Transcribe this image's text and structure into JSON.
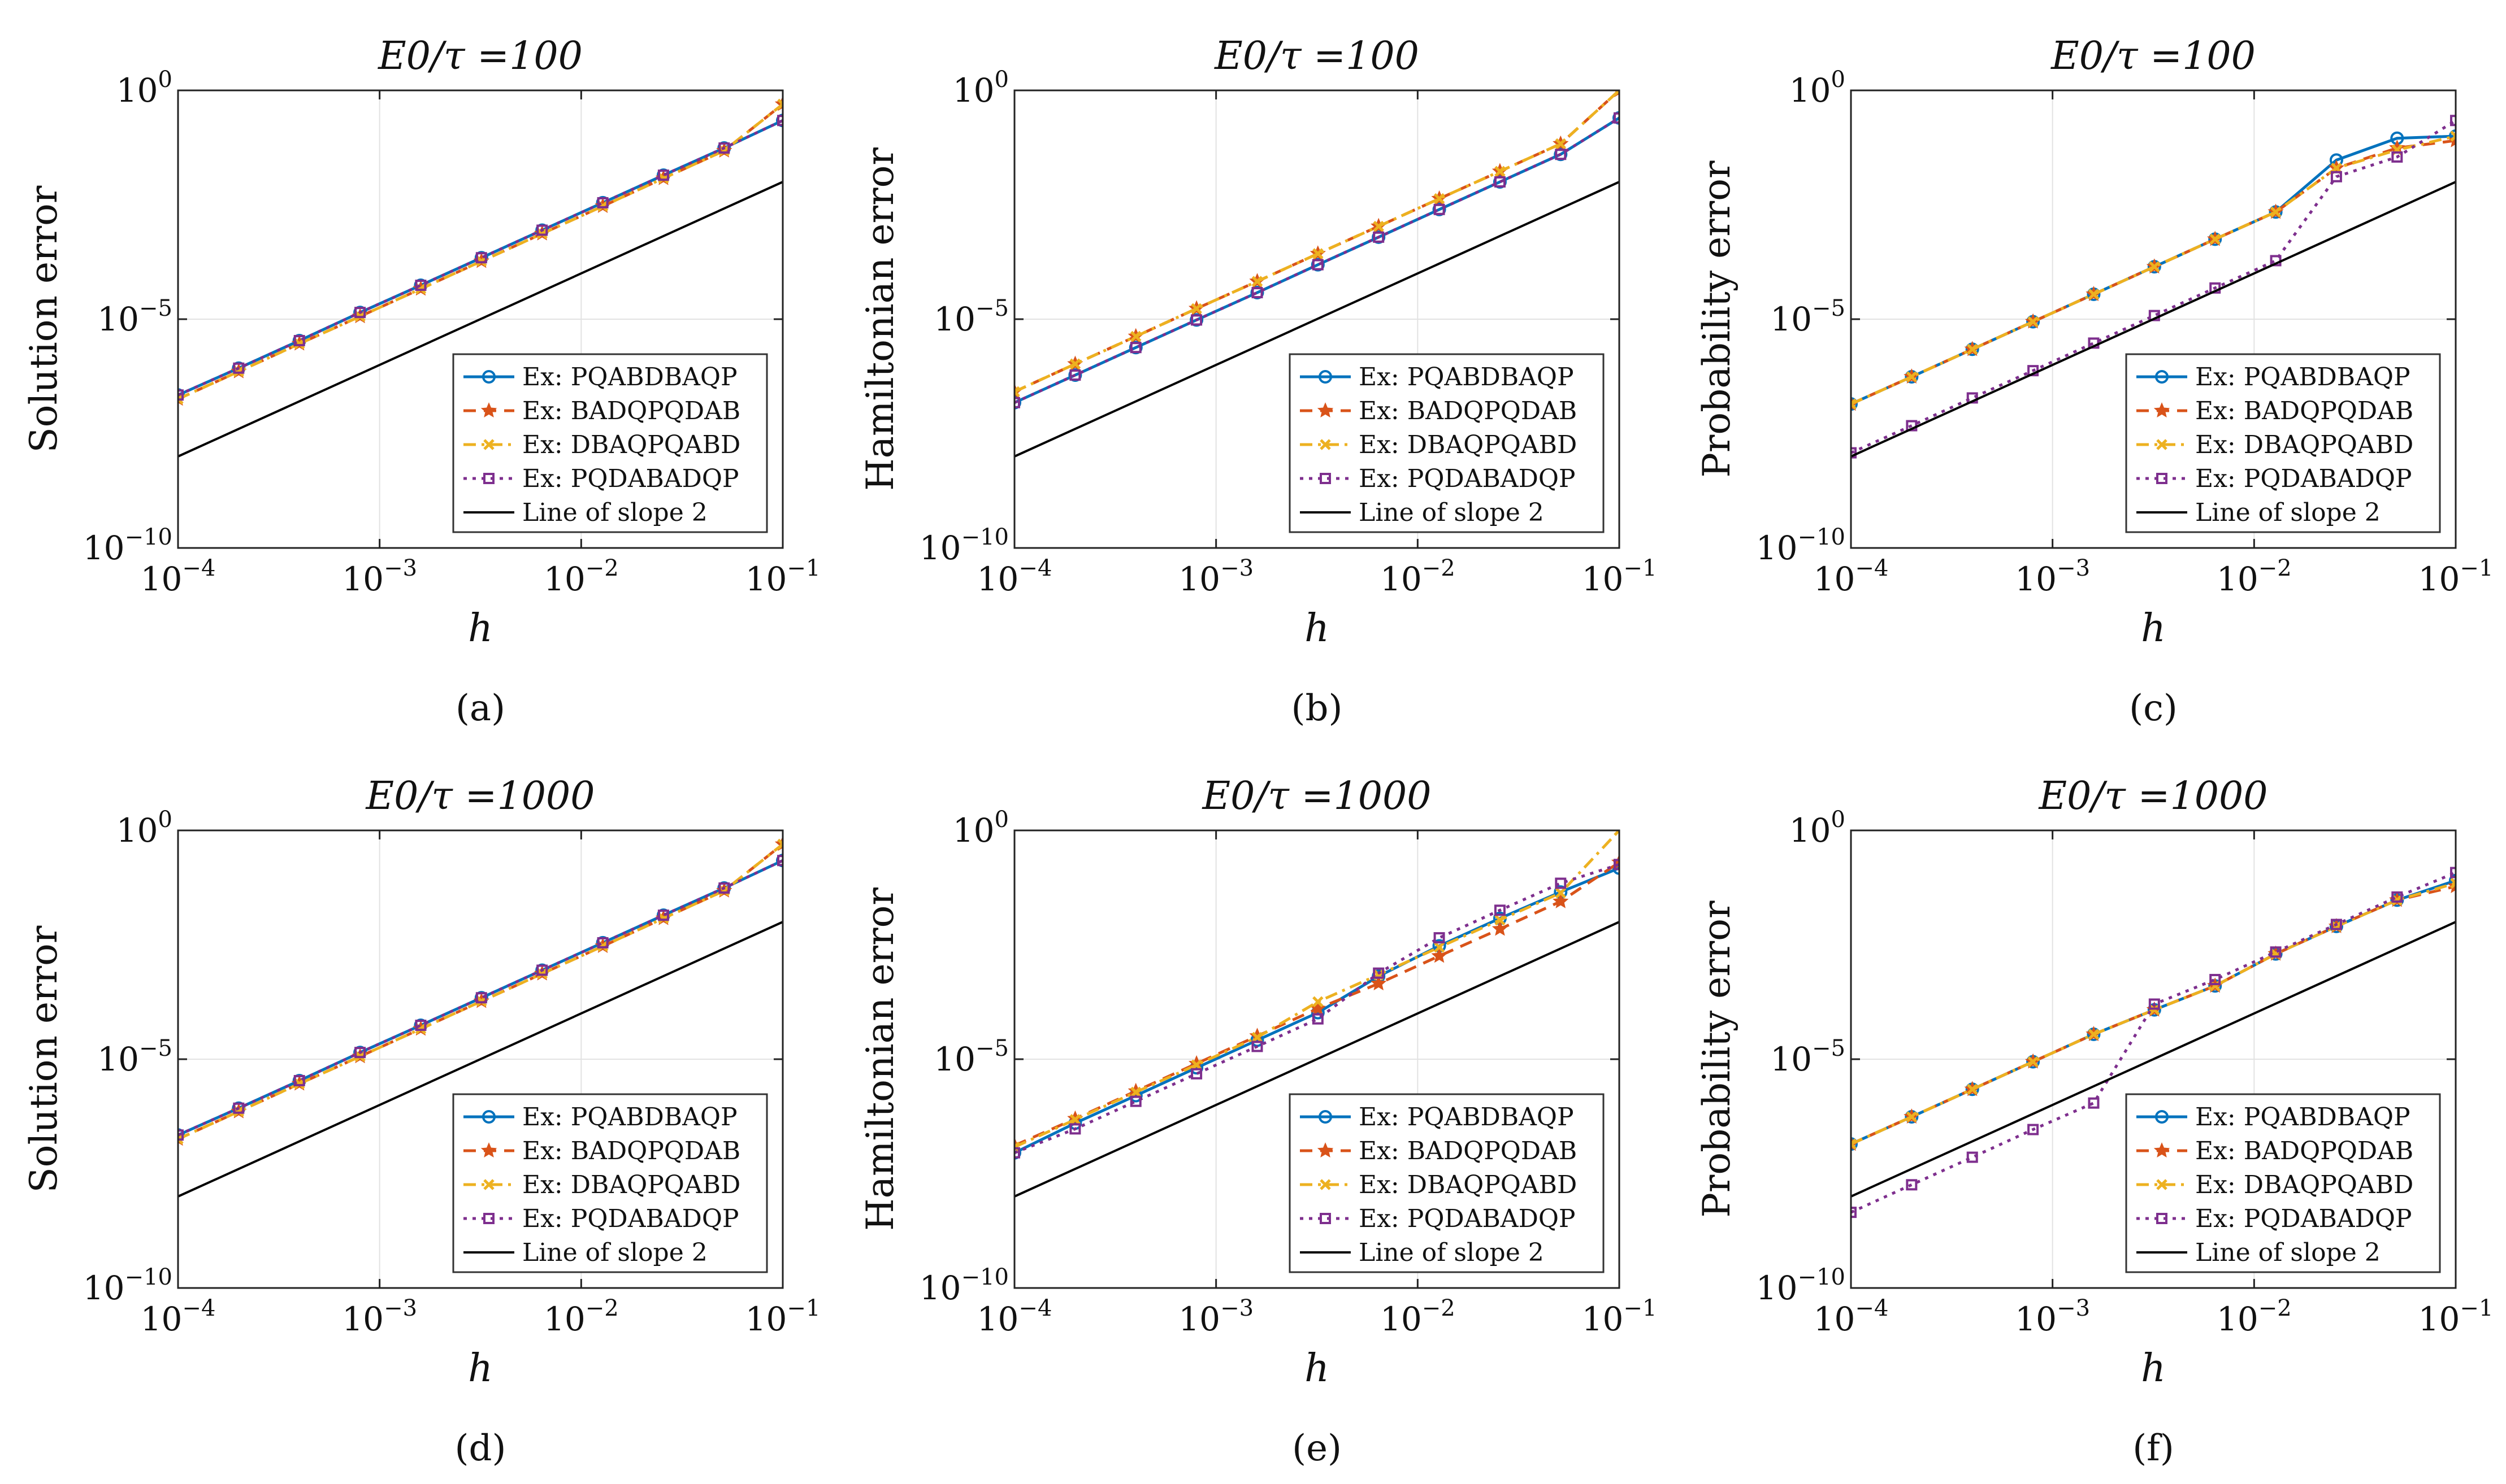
{
  "figure": {
    "xlabel": "h",
    "legend_labels": [
      "Ex: PQABDBAQP",
      "Ex: BADQPQDAB",
      "Ex: DBAQPQABD",
      "Ex: PQDABADQP",
      "Line of slope 2"
    ],
    "series_colors": [
      "#0072BD",
      "#D95319",
      "#EDB120",
      "#7E2F8E",
      "#000000"
    ],
    "x_tick_labels": [
      "10^-4",
      "10^-3",
      "10^-2",
      "10^-1"
    ],
    "y_tick_labels": [
      "10^-10",
      "10^-5",
      "10^0"
    ]
  },
  "chart_data": [
    {
      "type": "line",
      "panel": "a",
      "label": "(a)",
      "title": "E0/τ =100",
      "xlabel": "h",
      "ylabel": "Solution error",
      "xscale": "log",
      "yscale": "log",
      "xlim": [
        0.0001,
        0.1
      ],
      "ylim": [
        1e-10,
        1
      ],
      "grid": true,
      "legend_position": "bottom-right",
      "x": [
        0.0001,
        0.0002,
        0.0004,
        0.0008,
        0.0016,
        0.0032,
        0.0064,
        0.0128,
        0.0256,
        0.0512,
        0.1
      ],
      "series": [
        {
          "name": "Ex: PQABDBAQP",
          "values": [
            2.2e-07,
            8.5e-07,
            3.4e-06,
            1.4e-05,
            5.5e-05,
            0.00022,
            0.00088,
            0.0035,
            0.014,
            0.055,
            0.22
          ]
        },
        {
          "name": "Ex: BADQPQDAB",
          "values": [
            1.8e-07,
            7.2e-07,
            2.9e-06,
            1.15e-05,
            4.6e-05,
            0.000185,
            0.00074,
            0.00295,
            0.012,
            0.048,
            0.5
          ]
        },
        {
          "name": "Ex: DBAQPQABD",
          "values": [
            1.8e-07,
            7.2e-07,
            2.9e-06,
            1.15e-05,
            4.6e-05,
            0.000185,
            0.00074,
            0.00295,
            0.012,
            0.048,
            0.5
          ]
        },
        {
          "name": "Ex: PQDABADQP",
          "values": [
            2.2e-07,
            8.5e-07,
            3.4e-06,
            1.4e-05,
            5.5e-05,
            0.00022,
            0.00088,
            0.0035,
            0.014,
            0.055,
            0.22
          ]
        },
        {
          "name": "Line of slope 2",
          "x": [
            0.0001,
            0.1
          ],
          "values": [
            1e-08,
            0.01
          ]
        }
      ]
    },
    {
      "type": "line",
      "panel": "b",
      "label": "(b)",
      "title": "E0/τ =100",
      "xlabel": "h",
      "ylabel": "Hamiltonian error",
      "xscale": "log",
      "yscale": "log",
      "xlim": [
        0.0001,
        0.1
      ],
      "ylim": [
        1e-10,
        1
      ],
      "grid": true,
      "legend_position": "bottom-right",
      "x": [
        0.0001,
        0.0002,
        0.0004,
        0.0008,
        0.0016,
        0.0032,
        0.0064,
        0.0128,
        0.0256,
        0.0512,
        0.1
      ],
      "series": [
        {
          "name": "Ex: PQABDBAQP",
          "values": [
            1.5e-07,
            6e-07,
            2.4e-06,
            9.6e-06,
            3.8e-05,
            0.000155,
            0.00062,
            0.0025,
            0.01,
            0.04,
            0.25
          ]
        },
        {
          "name": "Ex: BADQPQDAB",
          "values": [
            2.6e-07,
            1.05e-06,
            4.2e-06,
            1.7e-05,
            6.7e-05,
            0.00027,
            0.00107,
            0.0043,
            0.017,
            0.068,
            1.0
          ]
        },
        {
          "name": "Ex: DBAQPQABD",
          "values": [
            2.6e-07,
            1.05e-06,
            4.2e-06,
            1.7e-05,
            6.7e-05,
            0.00027,
            0.00107,
            0.0043,
            0.017,
            0.068,
            1.0
          ]
        },
        {
          "name": "Ex: PQDABADQP",
          "values": [
            1.5e-07,
            6e-07,
            2.4e-06,
            9.6e-06,
            3.8e-05,
            0.000155,
            0.00062,
            0.0025,
            0.01,
            0.04,
            0.25
          ]
        },
        {
          "name": "Line of slope 2",
          "x": [
            0.0001,
            0.1
          ],
          "values": [
            1e-08,
            0.01
          ]
        }
      ]
    },
    {
      "type": "line",
      "panel": "c",
      "label": "(c)",
      "title": "E0/τ =100",
      "xlabel": "h",
      "ylabel": "Probability error",
      "xscale": "log",
      "yscale": "log",
      "xlim": [
        0.0001,
        0.1
      ],
      "ylim": [
        1e-10,
        1
      ],
      "grid": true,
      "legend_position": "bottom-right",
      "x": [
        0.0001,
        0.0002,
        0.0004,
        0.0008,
        0.0016,
        0.0032,
        0.0064,
        0.0128,
        0.0256,
        0.0512,
        0.1
      ],
      "series": [
        {
          "name": "Ex: PQABDBAQP",
          "values": [
            1.4e-07,
            5.5e-07,
            2.2e-06,
            8.8e-06,
            3.5e-05,
            0.00014,
            0.00056,
            0.0022,
            0.03,
            0.09,
            0.1
          ]
        },
        {
          "name": "Ex: BADQPQDAB",
          "values": [
            1.4e-07,
            5.5e-07,
            2.2e-06,
            8.8e-06,
            3.5e-05,
            0.00014,
            0.00056,
            0.0022,
            0.02,
            0.055,
            0.08
          ]
        },
        {
          "name": "Ex: DBAQPQABD",
          "values": [
            1.4e-07,
            5.5e-07,
            2.2e-06,
            8.8e-06,
            3.5e-05,
            0.00014,
            0.00056,
            0.0022,
            0.02,
            0.05,
            0.1
          ]
        },
        {
          "name": "Ex: PQDABADQP",
          "values": [
            1.2e-08,
            4.7e-08,
            1.9e-07,
            7.5e-07,
            3e-06,
            1.2e-05,
            4.8e-05,
            0.00019,
            0.013,
            0.035,
            0.22
          ]
        },
        {
          "name": "Line of slope 2",
          "x": [
            0.0001,
            0.1
          ],
          "values": [
            1e-08,
            0.01
          ]
        }
      ]
    },
    {
      "type": "line",
      "panel": "d",
      "label": "(d)",
      "title": "E0/τ =1000",
      "xlabel": "h",
      "ylabel": "Solution error",
      "xscale": "log",
      "yscale": "log",
      "xlim": [
        0.0001,
        0.1
      ],
      "ylim": [
        1e-10,
        1
      ],
      "grid": true,
      "legend_position": "bottom-right",
      "x": [
        0.0001,
        0.0002,
        0.0004,
        0.0008,
        0.0016,
        0.0032,
        0.0064,
        0.0128,
        0.0256,
        0.0512,
        0.1
      ],
      "series": [
        {
          "name": "Ex: PQABDBAQP",
          "values": [
            2.2e-07,
            8.5e-07,
            3.4e-06,
            1.4e-05,
            5.5e-05,
            0.00022,
            0.00088,
            0.0035,
            0.014,
            0.055,
            0.22
          ]
        },
        {
          "name": "Ex: BADQPQDAB",
          "values": [
            1.8e-07,
            7.2e-07,
            2.9e-06,
            1.15e-05,
            4.6e-05,
            0.000185,
            0.00074,
            0.00295,
            0.012,
            0.048,
            0.5
          ]
        },
        {
          "name": "Ex: DBAQPQABD",
          "values": [
            1.8e-07,
            7.2e-07,
            2.9e-06,
            1.15e-05,
            4.6e-05,
            0.000185,
            0.00074,
            0.00295,
            0.012,
            0.048,
            0.5
          ]
        },
        {
          "name": "Ex: PQDABADQP",
          "values": [
            2.2e-07,
            8.5e-07,
            3.4e-06,
            1.4e-05,
            5.5e-05,
            0.00022,
            0.00088,
            0.0035,
            0.014,
            0.055,
            0.22
          ]
        },
        {
          "name": "Line of slope 2",
          "x": [
            0.0001,
            0.1
          ],
          "values": [
            1e-08,
            0.01
          ]
        }
      ]
    },
    {
      "type": "line",
      "panel": "e",
      "label": "(e)",
      "title": "E0/τ =1000",
      "xlabel": "h",
      "ylabel": "Hamiltonian error",
      "xscale": "log",
      "yscale": "log",
      "xlim": [
        0.0001,
        0.1
      ],
      "ylim": [
        1e-10,
        1
      ],
      "grid": true,
      "legend_position": "bottom-right",
      "x": [
        0.0001,
        0.0002,
        0.0004,
        0.0008,
        0.0016,
        0.0032,
        0.0064,
        0.0128,
        0.0256,
        0.0512,
        0.1
      ],
      "series": [
        {
          "name": "Ex: PQABDBAQP",
          "values": [
            9e-08,
            4e-07,
            1.6e-06,
            6.5e-06,
            2.6e-05,
            0.000104,
            0.00065,
            0.003,
            0.012,
            0.045,
            0.15
          ]
        },
        {
          "name": "Ex: BADQPQDAB",
          "values": [
            1.3e-07,
            5e-07,
            2e-06,
            8e-06,
            3.2e-05,
            0.000128,
            0.00045,
            0.0018,
            0.007,
            0.028,
            0.2
          ]
        },
        {
          "name": "Ex: DBAQPQABD",
          "values": [
            1.2e-07,
            4.8e-07,
            1.9e-06,
            7.5e-06,
            3e-05,
            0.00018,
            0.0007,
            0.0028,
            0.011,
            0.043,
            1.0
          ]
        },
        {
          "name": "Ex: PQDABADQP",
          "values": [
            9e-08,
            3e-07,
            1.2e-06,
            4.8e-06,
            1.9e-05,
            7.6e-05,
            0.00076,
            0.0045,
            0.018,
            0.07,
            0.18
          ]
        },
        {
          "name": "Line of slope 2",
          "x": [
            0.0001,
            0.1
          ],
          "values": [
            1e-08,
            0.01
          ]
        }
      ]
    },
    {
      "type": "line",
      "panel": "f",
      "label": "(f)",
      "title": "E0/τ =1000",
      "xlabel": "h",
      "ylabel": "Probability error",
      "xscale": "log",
      "yscale": "log",
      "xlim": [
        0.0001,
        0.1
      ],
      "ylim": [
        1e-10,
        1
      ],
      "grid": true,
      "legend_position": "bottom-right",
      "x": [
        0.0001,
        0.0002,
        0.0004,
        0.0008,
        0.0016,
        0.0032,
        0.0064,
        0.0128,
        0.0256,
        0.0512,
        0.1
      ],
      "series": [
        {
          "name": "Ex: PQABDBAQP",
          "values": [
            1.4e-07,
            5.5e-07,
            2.2e-06,
            8.8e-06,
            3.5e-05,
            0.00012,
            0.0004,
            0.002,
            0.008,
            0.03,
            0.08
          ]
        },
        {
          "name": "Ex: BADQPQDAB",
          "values": [
            1.4e-07,
            5.5e-07,
            2.2e-06,
            8.8e-06,
            3.5e-05,
            0.00012,
            0.0004,
            0.002,
            0.008,
            0.03,
            0.06
          ]
        },
        {
          "name": "Ex: DBAQPQABD",
          "values": [
            1.4e-07,
            5.5e-07,
            2.2e-06,
            8.8e-06,
            3.5e-05,
            0.00012,
            0.0004,
            0.002,
            0.008,
            0.03,
            0.07
          ]
        },
        {
          "name": "Ex: PQDABADQP",
          "values": [
            4.5e-09,
            1.8e-08,
            7.2e-08,
            2.9e-07,
            1.1e-06,
            0.00016,
            0.00055,
            0.0022,
            0.0088,
            0.035,
            0.12
          ]
        },
        {
          "name": "Line of slope 2",
          "x": [
            0.0001,
            0.1
          ],
          "values": [
            1e-08,
            0.01
          ]
        }
      ]
    }
  ]
}
